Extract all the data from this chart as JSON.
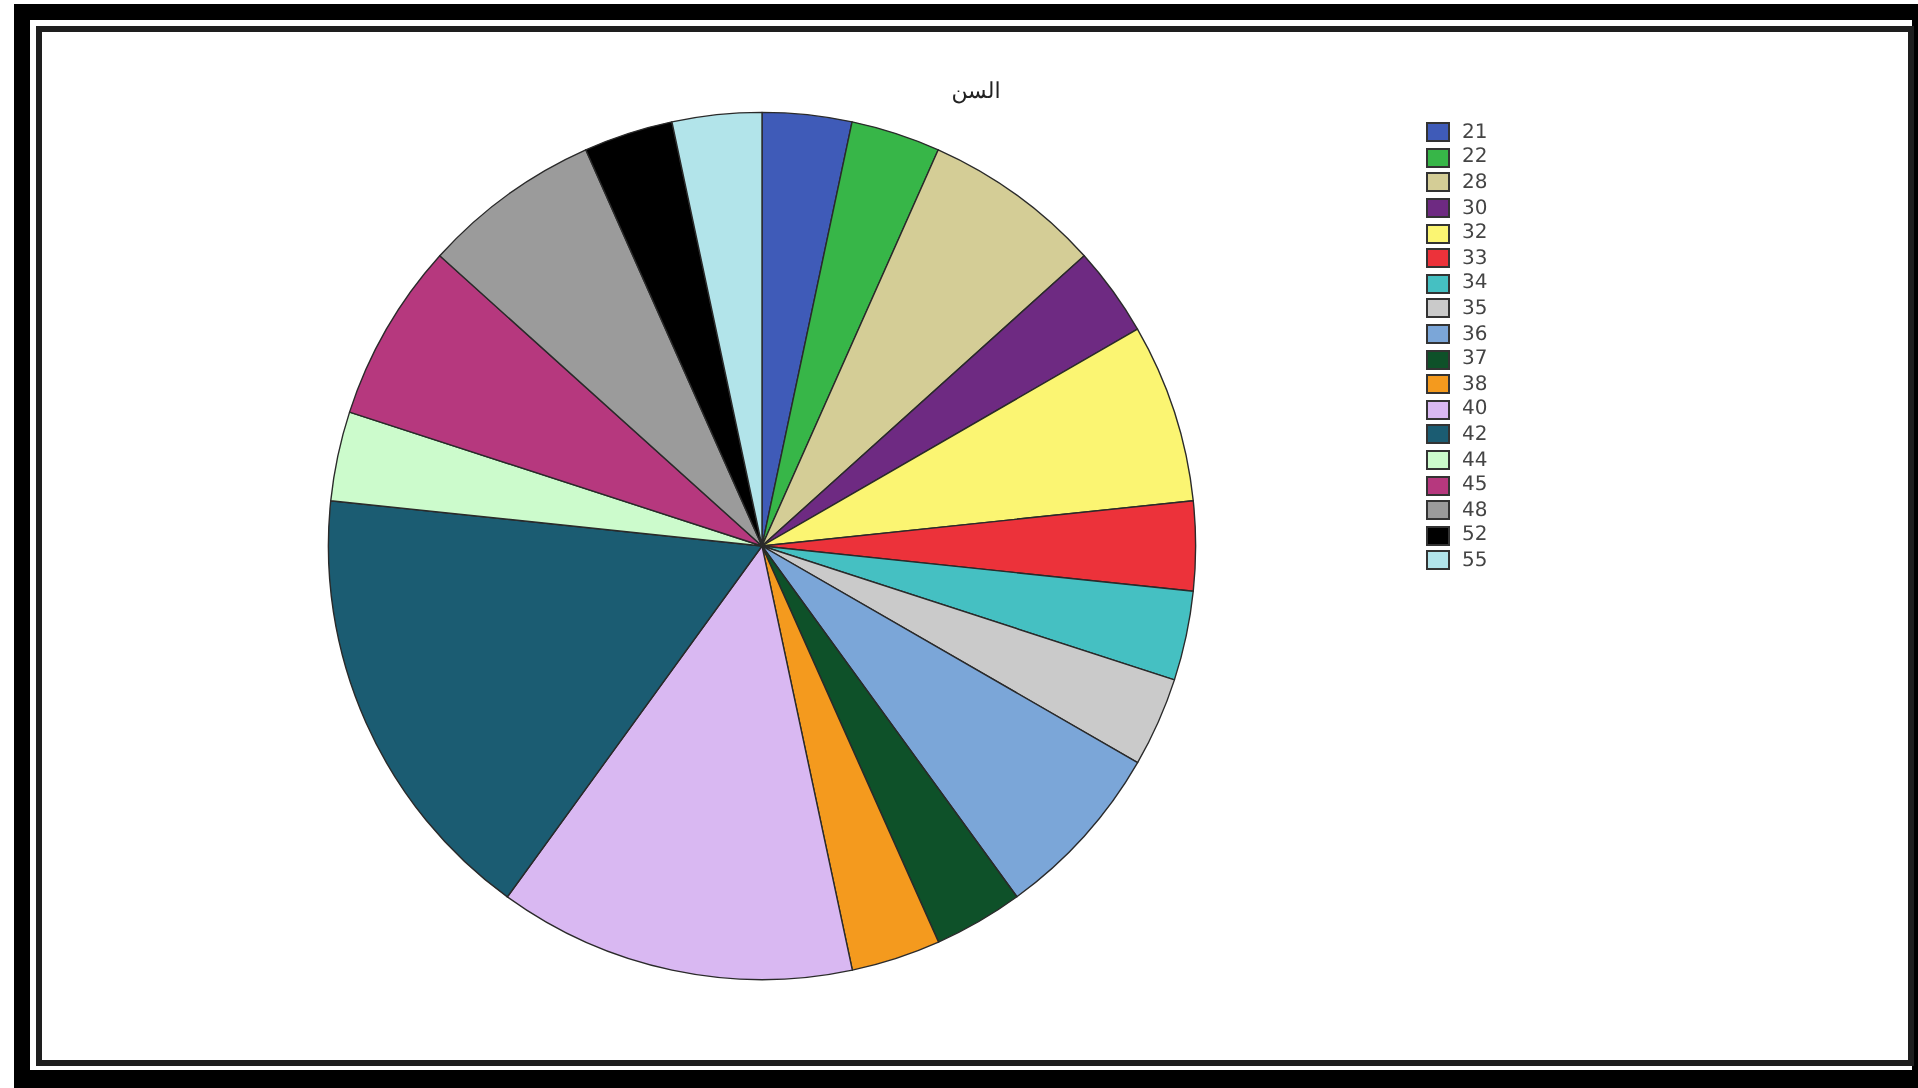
{
  "chart_data": {
    "type": "pie",
    "title": "السن",
    "categories": [
      "21",
      "22",
      "28",
      "30",
      "32",
      "33",
      "34",
      "35",
      "36",
      "37",
      "38",
      "40",
      "42",
      "44",
      "45",
      "48",
      "52",
      "55"
    ],
    "values": [
      3.33,
      3.33,
      6.67,
      3.33,
      6.67,
      3.33,
      3.33,
      3.33,
      6.67,
      3.33,
      3.33,
      13.33,
      16.67,
      3.33,
      6.67,
      6.67,
      3.33,
      3.33
    ],
    "colors": [
      "#3f5bb8",
      "#37b648",
      "#d4cd96",
      "#6e2a82",
      "#fbf572",
      "#ec323a",
      "#45c0c2",
      "#cacaca",
      "#7ba6d8",
      "#0e5129",
      "#f49a1e",
      "#d9b8f2",
      "#1b5c72",
      "#ccfbcc",
      "#b6387e",
      "#9b9b9b",
      "#000000",
      "#b2e4ea"
    ],
    "legend": "top right"
  }
}
